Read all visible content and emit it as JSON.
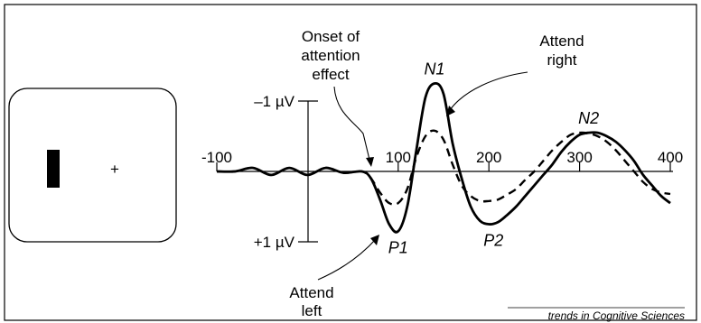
{
  "stimulus": {
    "fixation": "+"
  },
  "chart_data": {
    "type": "line",
    "x_ticks": [
      "-100",
      "100",
      "200",
      "300",
      "400"
    ],
    "xlim": [
      -100,
      400
    ],
    "y_scale_labels": {
      "top": "–1 µV",
      "bottom": "+1 µV"
    },
    "y_direction": "negative up",
    "series": [
      {
        "name": "Attend left",
        "style": "solid",
        "x": [
          -100,
          -80,
          -60,
          -40,
          -20,
          0,
          20,
          40,
          60,
          70,
          80,
          90,
          100,
          110,
          120,
          130,
          140,
          150,
          160,
          170,
          180,
          190,
          200,
          210,
          220,
          230,
          240,
          250,
          260,
          270,
          280,
          290,
          300,
          310,
          320,
          330,
          340,
          350,
          360,
          370,
          380,
          390,
          400
        ],
        "y": [
          0,
          0,
          -0.05,
          0.05,
          -0.05,
          0.05,
          -0.05,
          0.02,
          0,
          0.1,
          0.4,
          0.75,
          0.85,
          0.5,
          -0.3,
          -1.05,
          -1.25,
          -1.1,
          -0.4,
          0.1,
          0.5,
          0.7,
          0.75,
          0.72,
          0.62,
          0.5,
          0.35,
          0.2,
          0.05,
          -0.1,
          -0.28,
          -0.42,
          -0.52,
          -0.55,
          -0.55,
          -0.5,
          -0.42,
          -0.3,
          -0.15,
          0.05,
          0.2,
          0.35,
          0.45
        ]
      },
      {
        "name": "Attend right",
        "style": "dashed",
        "x": [
          -100,
          -80,
          -60,
          -40,
          -20,
          0,
          20,
          40,
          60,
          70,
          80,
          90,
          100,
          110,
          120,
          130,
          140,
          150,
          160,
          170,
          180,
          190,
          200,
          210,
          220,
          230,
          240,
          250,
          260,
          270,
          280,
          290,
          300,
          310,
          320,
          330,
          340,
          350,
          360,
          370,
          380,
          390,
          400
        ],
        "y": [
          0,
          0,
          -0.05,
          0.05,
          -0.05,
          0.05,
          -0.05,
          0.02,
          0,
          0.1,
          0.3,
          0.45,
          0.45,
          0.25,
          -0.2,
          -0.5,
          -0.58,
          -0.45,
          -0.1,
          0.2,
          0.35,
          0.42,
          0.42,
          0.4,
          0.33,
          0.25,
          0.12,
          0,
          -0.15,
          -0.3,
          -0.42,
          -0.52,
          -0.55,
          -0.54,
          -0.5,
          -0.42,
          -0.3,
          -0.15,
          0,
          0.15,
          0.25,
          0.3,
          0.32
        ]
      }
    ],
    "peak_labels": [
      {
        "text": "N1",
        "x": 140,
        "y": -1.25
      },
      {
        "text": "P1",
        "x": 100,
        "y": 0.85
      },
      {
        "text": "P2",
        "x": 205,
        "y": 0.75
      },
      {
        "text": "N2",
        "x": 310,
        "y": -0.55
      }
    ],
    "annotations": [
      {
        "text_lines": [
          "Onset of",
          "attention",
          "effect"
        ],
        "target_x": 70
      },
      {
        "text_lines": [
          "Attend",
          "right"
        ],
        "target": "Attend right"
      },
      {
        "text_lines": [
          "Attend",
          "left"
        ],
        "target": "Attend left"
      }
    ]
  },
  "footer": {
    "credit": "trends in Cognitive Sciences"
  }
}
